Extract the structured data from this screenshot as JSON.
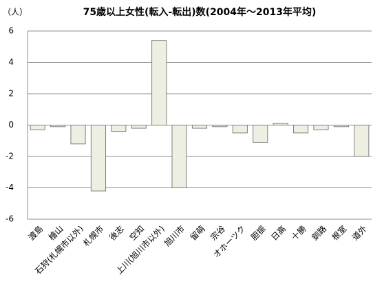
{
  "chart_data": {
    "type": "bar",
    "title": "75歳以上女性(転入-転出)数(2004年～2013年平均)",
    "y_label": "（人）",
    "categories": [
      "渡島",
      "檜山",
      "石狩(札幌市以外)",
      "札幌市",
      "後志",
      "空知",
      "上川(旭川市以外)",
      "旭川市",
      "留萌",
      "宗谷",
      "オホーツク",
      "胆振",
      "日高",
      "十勝",
      "釧路",
      "根室",
      "道外"
    ],
    "values": [
      -0.3,
      -0.1,
      -1.2,
      -4.2,
      -0.4,
      -0.2,
      5.4,
      -4.0,
      -0.2,
      -0.1,
      -0.5,
      -1.1,
      0.1,
      -0.5,
      -0.3,
      -0.1,
      -2.0
    ],
    "color": "#efeee2",
    "ylim": [
      -6,
      6
    ],
    "yticks": [
      -6,
      -4,
      -2,
      0,
      2,
      4,
      6
    ],
    "grid": true
  }
}
